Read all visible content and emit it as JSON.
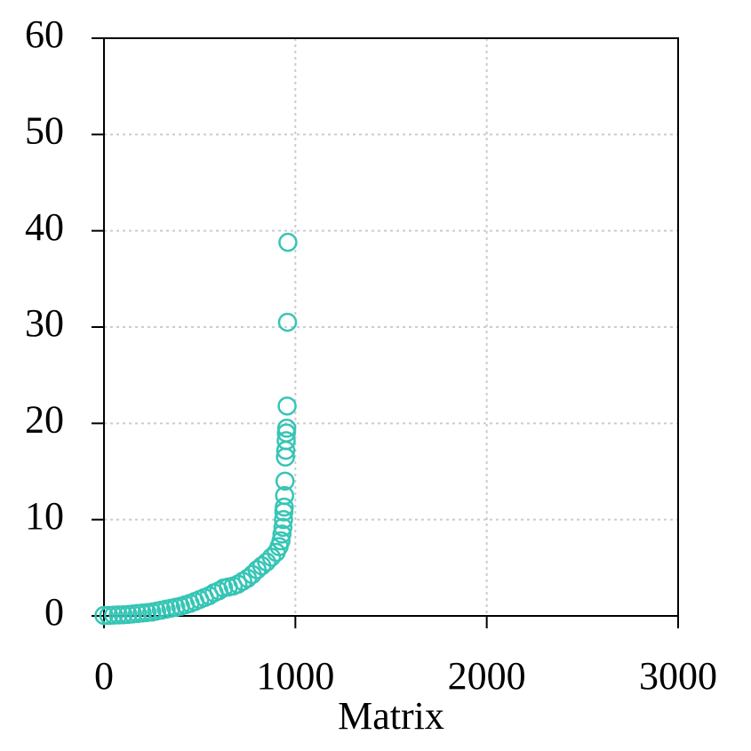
{
  "chart_data": {
    "type": "scatter",
    "xlabel": "Matrix",
    "x": [
      0,
      25,
      50,
      75,
      100,
      125,
      150,
      175,
      200,
      225,
      250,
      275,
      300,
      325,
      350,
      375,
      400,
      425,
      450,
      475,
      500,
      525,
      550,
      575,
      600,
      625,
      650,
      675,
      700,
      725,
      750,
      775,
      800,
      825,
      850,
      875,
      900,
      915,
      925,
      930,
      935,
      938,
      940,
      942,
      944,
      946,
      948,
      950,
      952,
      953,
      955,
      957,
      959,
      961
    ],
    "values": [
      0.05,
      0.05,
      0.08,
      0.1,
      0.12,
      0.15,
      0.2,
      0.25,
      0.3,
      0.35,
      0.4,
      0.5,
      0.6,
      0.7,
      0.8,
      0.9,
      1.0,
      1.15,
      1.3,
      1.5,
      1.7,
      1.9,
      2.1,
      2.4,
      2.6,
      2.9,
      3.0,
      3.1,
      3.3,
      3.6,
      3.9,
      4.3,
      4.8,
      5.2,
      5.6,
      6.1,
      6.6,
      7.2,
      7.8,
      8.5,
      9.2,
      10,
      10.8,
      11.3,
      12.5,
      14,
      16.5,
      17.2,
      18.2,
      19,
      19.5,
      21.8,
      30.5,
      38.8
    ],
    "color": "#36c5b5",
    "xlim": [
      0,
      3000
    ],
    "ylim": [
      0,
      60
    ],
    "xticks": [
      0,
      1000,
      2000,
      3000
    ],
    "yticks": [
      0,
      10,
      20,
      30,
      40,
      50,
      60
    ],
    "grid": true
  }
}
